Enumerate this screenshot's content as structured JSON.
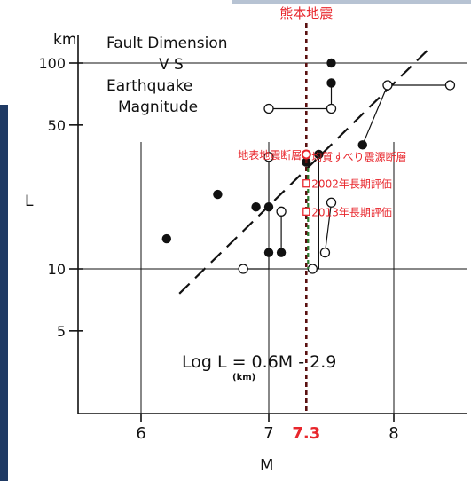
{
  "chart_data": {
    "type": "scatter",
    "title": "Fault Dimension",
    "title_vs": "V S",
    "title_line3": "Earthquake",
    "title_line4": "Magnitude",
    "xlabel": "M",
    "ylabel": "L",
    "y_unit": "km",
    "log_y": true,
    "xlim": [
      5.55,
      8.55
    ],
    "ylim": [
      3,
      130
    ],
    "grid": true,
    "x_ticks": [
      {
        "value": 6,
        "label": "6"
      },
      {
        "value": 7,
        "label": "7"
      },
      {
        "value": 8,
        "label": "8"
      }
    ],
    "y_ticks": [
      {
        "value": 100,
        "label": "100"
      },
      {
        "value": 50,
        "label": "50"
      },
      {
        "value": 10,
        "label": "10"
      },
      {
        "value": 5,
        "label": "5"
      }
    ],
    "equation": "Log L = 0.6M - 2.9",
    "equation_unit": "(km)",
    "regression": {
      "slope": 0.6,
      "intercept": -2.9,
      "x_range": [
        6.3,
        8.3
      ]
    },
    "filled_points": [
      {
        "x": 6.2,
        "y": 14
      },
      {
        "x": 6.6,
        "y": 23
      },
      {
        "x": 6.9,
        "y": 20
      },
      {
        "x": 7.0,
        "y": 20
      },
      {
        "x": 7.0,
        "y": 12
      },
      {
        "x": 7.1,
        "y": 12
      },
      {
        "x": 7.3,
        "y": 33
      },
      {
        "x": 7.4,
        "y": 36
      },
      {
        "x": 7.5,
        "y": 100
      },
      {
        "x": 7.5,
        "y": 80
      },
      {
        "x": 7.75,
        "y": 40
      }
    ],
    "open_points": [
      {
        "x": 6.8,
        "y": 10
      },
      {
        "x": 7.0,
        "y": 60
      },
      {
        "x": 7.0,
        "y": 35
      },
      {
        "x": 7.1,
        "y": 19
      },
      {
        "x": 7.5,
        "y": 60
      },
      {
        "x": 7.5,
        "y": 21
      },
      {
        "x": 7.45,
        "y": 12
      },
      {
        "x": 7.35,
        "y": 10
      },
      {
        "x": 7.95,
        "y": 78
      },
      {
        "x": 8.45,
        "y": 78
      }
    ],
    "connectors": [
      {
        "x1": 6.8,
        "y1": 10,
        "x2": 7.0,
        "y2": 10
      },
      {
        "x1": 7.0,
        "y1": 10,
        "x2": 7.0,
        "y2": 12
      },
      {
        "x1": 7.0,
        "y1": 35,
        "x2": 7.0,
        "y2": 20
      },
      {
        "x1": 7.1,
        "y1": 19,
        "x2": 7.1,
        "y2": 12
      },
      {
        "x1": 7.0,
        "y1": 60,
        "x2": 7.5,
        "y2": 60
      },
      {
        "x1": 7.5,
        "y1": 60,
        "x2": 7.5,
        "y2": 80
      },
      {
        "x1": 7.5,
        "y1": 21,
        "x2": 7.45,
        "y2": 12
      },
      {
        "x1": 7.4,
        "y1": 36,
        "x2": 7.4,
        "y2": 10
      },
      {
        "x1": 7.4,
        "y1": 10,
        "x2": 7.35,
        "y2": 10
      },
      {
        "x1": 7.95,
        "y1": 78,
        "x2": 8.45,
        "y2": 78
      },
      {
        "x1": 7.95,
        "y1": 78,
        "x2": 7.75,
        "y2": 40
      }
    ],
    "annotations": {
      "kumamoto_label": "熊本地震",
      "kumamoto_m": 7.3,
      "kumamoto_m_label": "7.3",
      "surface_fault": {
        "label": "地表地震断層",
        "x": 7.3,
        "y": 36
      },
      "uniform_slip": {
        "label": "均質すべり震源断層",
        "x": 7.3,
        "y": 31
      },
      "eval_2002": {
        "label": "2002年長期評価",
        "x": 7.3,
        "y": 26
      },
      "eval_2013": {
        "label": "2013年長期評価",
        "x": 7.3,
        "y": 19
      },
      "green_segment": {
        "x": 7.3,
        "y_from": 31,
        "y_to": 10
      }
    },
    "colors": {
      "annotation_red": "#e8262c",
      "green": "#2e7d32",
      "ink": "#111111",
      "left_panel": "#1f3a64"
    }
  }
}
